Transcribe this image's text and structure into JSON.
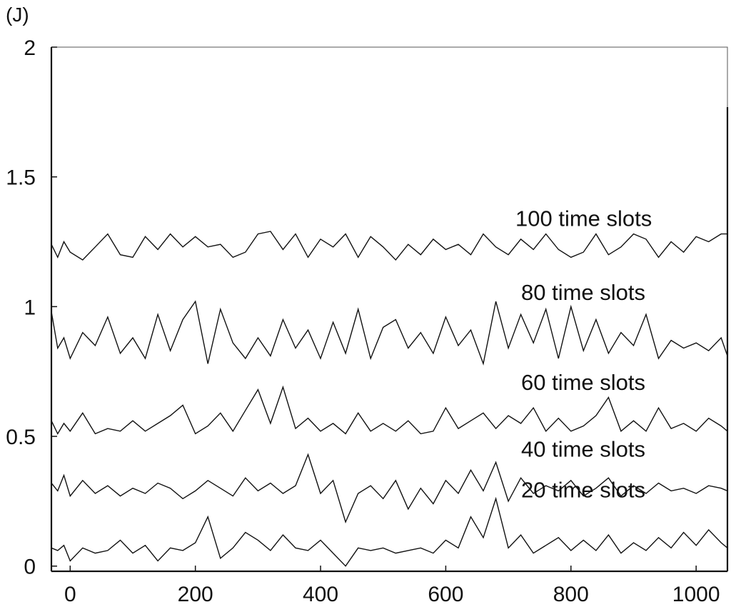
{
  "chart_data": {
    "type": "line",
    "ylabel": "(J)",
    "xlim": [
      -30,
      1050
    ],
    "ylim": [
      -0.02,
      2
    ],
    "x_ticks": [
      "0",
      "200",
      "400",
      "600",
      "800",
      "1000"
    ],
    "x_tick_values": [
      0,
      200,
      400,
      600,
      800,
      1000
    ],
    "y_ticks": [
      "0",
      "0.5",
      "1",
      "1.5",
      "2"
    ],
    "y_tick_values": [
      0,
      0.5,
      1,
      1.5,
      2
    ],
    "grid": false,
    "legend": "inline labels above each line",
    "series": [
      {
        "name": "100 time slots",
        "x": [
          -30,
          -20,
          -10,
          0,
          20,
          40,
          60,
          80,
          100,
          120,
          140,
          160,
          180,
          200,
          220,
          240,
          260,
          280,
          300,
          320,
          340,
          360,
          380,
          400,
          420,
          440,
          460,
          480,
          500,
          520,
          540,
          560,
          580,
          600,
          620,
          640,
          660,
          680,
          700,
          720,
          740,
          760,
          780,
          800,
          820,
          840,
          860,
          880,
          900,
          920,
          940,
          960,
          980,
          1000,
          1020,
          1040,
          1050
        ],
        "values": [
          1.24,
          1.19,
          1.25,
          1.21,
          1.18,
          1.23,
          1.28,
          1.2,
          1.19,
          1.27,
          1.22,
          1.28,
          1.23,
          1.27,
          1.23,
          1.24,
          1.19,
          1.21,
          1.28,
          1.29,
          1.22,
          1.28,
          1.19,
          1.26,
          1.23,
          1.28,
          1.19,
          1.27,
          1.23,
          1.18,
          1.24,
          1.2,
          1.26,
          1.22,
          1.24,
          1.2,
          1.28,
          1.23,
          1.2,
          1.26,
          1.22,
          1.28,
          1.22,
          1.19,
          1.21,
          1.28,
          1.2,
          1.23,
          1.28,
          1.26,
          1.19,
          1.25,
          1.21,
          1.27,
          1.25,
          1.28,
          1.28
        ]
      },
      {
        "name": "80 time slots",
        "x": [
          -30,
          -20,
          -10,
          0,
          20,
          40,
          60,
          80,
          100,
          120,
          140,
          160,
          180,
          200,
          220,
          240,
          260,
          280,
          300,
          320,
          340,
          360,
          380,
          400,
          420,
          440,
          460,
          480,
          500,
          520,
          540,
          560,
          580,
          600,
          620,
          640,
          660,
          680,
          700,
          720,
          740,
          760,
          780,
          800,
          820,
          840,
          860,
          880,
          900,
          920,
          940,
          960,
          980,
          1000,
          1020,
          1040,
          1050
        ],
        "values": [
          0.98,
          0.84,
          0.88,
          0.8,
          0.9,
          0.85,
          0.96,
          0.82,
          0.88,
          0.8,
          0.97,
          0.83,
          0.95,
          1.02,
          0.78,
          0.99,
          0.86,
          0.8,
          0.88,
          0.81,
          0.95,
          0.84,
          0.91,
          0.8,
          0.94,
          0.82,
          0.99,
          0.8,
          0.92,
          0.95,
          0.84,
          0.9,
          0.82,
          0.96,
          0.85,
          0.91,
          0.78,
          1.02,
          0.84,
          0.97,
          0.86,
          0.99,
          0.8,
          1.0,
          0.83,
          0.95,
          0.82,
          0.9,
          0.85,
          0.97,
          0.8,
          0.87,
          0.84,
          0.86,
          0.83,
          0.88,
          0.81
        ]
      },
      {
        "name": "60 time slots",
        "x": [
          -30,
          -20,
          -10,
          0,
          20,
          40,
          60,
          80,
          100,
          120,
          140,
          160,
          180,
          200,
          220,
          240,
          260,
          280,
          300,
          320,
          340,
          360,
          380,
          400,
          420,
          440,
          460,
          480,
          500,
          520,
          540,
          560,
          580,
          600,
          620,
          640,
          660,
          680,
          700,
          720,
          740,
          760,
          780,
          800,
          820,
          840,
          860,
          880,
          900,
          920,
          940,
          960,
          980,
          1000,
          1020,
          1040,
          1050
        ],
        "values": [
          0.56,
          0.51,
          0.55,
          0.52,
          0.59,
          0.51,
          0.53,
          0.52,
          0.56,
          0.52,
          0.55,
          0.58,
          0.62,
          0.51,
          0.54,
          0.59,
          0.52,
          0.6,
          0.68,
          0.55,
          0.69,
          0.53,
          0.57,
          0.52,
          0.55,
          0.51,
          0.59,
          0.52,
          0.55,
          0.52,
          0.56,
          0.51,
          0.52,
          0.61,
          0.53,
          0.56,
          0.59,
          0.53,
          0.58,
          0.55,
          0.61,
          0.52,
          0.57,
          0.52,
          0.54,
          0.58,
          0.65,
          0.52,
          0.56,
          0.52,
          0.61,
          0.53,
          0.55,
          0.52,
          0.57,
          0.54,
          0.52
        ]
      },
      {
        "name": "40 time slots",
        "x": [
          -30,
          -20,
          -10,
          0,
          20,
          40,
          60,
          80,
          100,
          120,
          140,
          160,
          180,
          200,
          220,
          240,
          260,
          280,
          300,
          320,
          340,
          360,
          380,
          400,
          420,
          440,
          460,
          480,
          500,
          520,
          540,
          560,
          580,
          600,
          620,
          640,
          660,
          680,
          700,
          720,
          740,
          760,
          780,
          800,
          820,
          840,
          860,
          880,
          900,
          920,
          940,
          960,
          980,
          1000,
          1020,
          1040,
          1050
        ],
        "values": [
          0.32,
          0.29,
          0.35,
          0.27,
          0.33,
          0.28,
          0.31,
          0.27,
          0.3,
          0.28,
          0.32,
          0.3,
          0.26,
          0.29,
          0.33,
          0.3,
          0.27,
          0.34,
          0.29,
          0.32,
          0.28,
          0.31,
          0.43,
          0.28,
          0.33,
          0.17,
          0.28,
          0.31,
          0.26,
          0.33,
          0.22,
          0.3,
          0.24,
          0.33,
          0.28,
          0.37,
          0.29,
          0.4,
          0.25,
          0.34,
          0.28,
          0.31,
          0.29,
          0.33,
          0.27,
          0.3,
          0.34,
          0.27,
          0.31,
          0.28,
          0.32,
          0.29,
          0.3,
          0.28,
          0.31,
          0.3,
          0.29
        ]
      },
      {
        "name": "20 time slots",
        "x": [
          -30,
          -20,
          -10,
          0,
          20,
          40,
          60,
          80,
          100,
          120,
          140,
          160,
          180,
          200,
          220,
          240,
          260,
          280,
          300,
          320,
          340,
          360,
          380,
          400,
          420,
          440,
          460,
          480,
          500,
          520,
          540,
          560,
          580,
          600,
          620,
          640,
          660,
          680,
          700,
          720,
          740,
          760,
          780,
          800,
          820,
          840,
          860,
          880,
          900,
          920,
          940,
          960,
          980,
          1000,
          1020,
          1040,
          1050
        ],
        "values": [
          0.07,
          0.06,
          0.08,
          0.02,
          0.07,
          0.05,
          0.06,
          0.1,
          0.05,
          0.08,
          0.02,
          0.07,
          0.06,
          0.09,
          0.19,
          0.03,
          0.07,
          0.13,
          0.1,
          0.06,
          0.12,
          0.07,
          0.06,
          0.1,
          0.05,
          0.0,
          0.07,
          0.06,
          0.07,
          0.05,
          0.06,
          0.07,
          0.05,
          0.1,
          0.07,
          0.19,
          0.11,
          0.26,
          0.07,
          0.12,
          0.05,
          0.08,
          0.11,
          0.06,
          0.1,
          0.06,
          0.12,
          0.05,
          0.09,
          0.06,
          0.11,
          0.07,
          0.13,
          0.08,
          0.14,
          0.09,
          0.07
        ]
      }
    ]
  }
}
